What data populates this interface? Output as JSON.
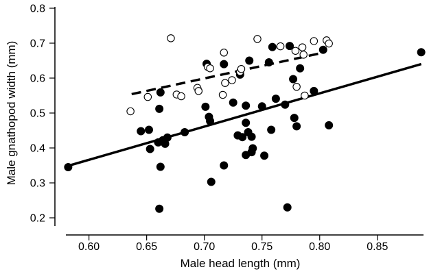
{
  "chart_data": {
    "type": "scatter",
    "title": "",
    "xlabel": "Male head length (mm)",
    "ylabel": "Male gnathopod width (mm)",
    "xlim": [
      0.58,
      0.89
    ],
    "ylim": [
      0.2,
      0.8
    ],
    "x_ticks": [
      0.6,
      0.65,
      0.7,
      0.75,
      0.8,
      0.85
    ],
    "x_tick_labels": [
      "0.60",
      "0.65",
      "0.70",
      "0.75",
      "0.80",
      "0.85"
    ],
    "y_ticks": [
      0.2,
      0.3,
      0.4,
      0.5,
      0.6,
      0.7,
      0.8
    ],
    "y_tick_labels": [
      "0.2",
      "0.3",
      "0.4",
      "0.5",
      "0.6",
      "0.7",
      "0.8"
    ],
    "grid": false,
    "legend": "none",
    "series": [
      {
        "marker": "filled-circle",
        "color": "#000000",
        "points": [
          [
            0.582,
            0.345
          ],
          [
            0.645,
            0.448
          ],
          [
            0.652,
            0.452
          ],
          [
            0.653,
            0.397
          ],
          [
            0.66,
            0.416
          ],
          [
            0.661,
            0.512
          ],
          [
            0.662,
            0.346
          ],
          [
            0.661,
            0.226
          ],
          [
            0.662,
            0.559
          ],
          [
            0.664,
            0.422
          ],
          [
            0.666,
            0.412
          ],
          [
            0.668,
            0.43
          ],
          [
            0.683,
            0.445
          ],
          [
            0.701,
            0.518
          ],
          [
            0.702,
            0.641
          ],
          [
            0.704,
            0.489
          ],
          [
            0.705,
            0.477
          ],
          [
            0.706,
            0.303
          ],
          [
            0.717,
            0.64
          ],
          [
            0.717,
            0.35
          ],
          [
            0.725,
            0.53
          ],
          [
            0.729,
            0.436
          ],
          [
            0.731,
            0.61
          ],
          [
            0.733,
            0.431
          ],
          [
            0.736,
            0.521
          ],
          [
            0.736,
            0.472
          ],
          [
            0.736,
            0.38
          ],
          [
            0.738,
            0.445
          ],
          [
            0.739,
            0.65
          ],
          [
            0.741,
            0.388
          ],
          [
            0.741,
            0.432
          ],
          [
            0.742,
            0.399
          ],
          [
            0.75,
            0.519
          ],
          [
            0.752,
            0.378
          ],
          [
            0.756,
            0.645
          ],
          [
            0.758,
            0.452
          ],
          [
            0.759,
            0.689
          ],
          [
            0.762,
            0.541
          ],
          [
            0.77,
            0.524
          ],
          [
            0.772,
            0.23
          ],
          [
            0.774,
            0.692
          ],
          [
            0.777,
            0.597
          ],
          [
            0.778,
            0.486
          ],
          [
            0.78,
            0.462
          ],
          [
            0.783,
            0.628
          ],
          [
            0.795,
            0.563
          ],
          [
            0.803,
            0.681
          ],
          [
            0.808,
            0.465
          ],
          [
            0.888,
            0.674
          ]
        ]
      },
      {
        "marker": "open-circle",
        "color": "#000000",
        "points": [
          [
            0.636,
            0.505
          ],
          [
            0.651,
            0.546
          ],
          [
            0.671,
            0.714
          ],
          [
            0.676,
            0.553
          ],
          [
            0.68,
            0.548
          ],
          [
            0.694,
            0.572
          ],
          [
            0.695,
            0.563
          ],
          [
            0.703,
            0.632
          ],
          [
            0.705,
            0.628
          ],
          [
            0.716,
            0.552
          ],
          [
            0.717,
            0.673
          ],
          [
            0.718,
            0.586
          ],
          [
            0.724,
            0.594
          ],
          [
            0.731,
            0.618
          ],
          [
            0.732,
            0.626
          ],
          [
            0.746,
            0.712
          ],
          [
            0.766,
            0.691
          ],
          [
            0.779,
            0.678
          ],
          [
            0.78,
            0.575
          ],
          [
            0.785,
            0.688
          ],
          [
            0.786,
            0.667
          ],
          [
            0.787,
            0.55
          ],
          [
            0.795,
            0.706
          ],
          [
            0.806,
            0.708
          ],
          [
            0.808,
            0.699
          ]
        ]
      }
    ],
    "fits": [
      {
        "style": "solid",
        "from": [
          0.582,
          0.349
        ],
        "to": [
          0.888,
          0.64
        ]
      },
      {
        "style": "dashed",
        "from": [
          0.637,
          0.554
        ],
        "to": [
          0.802,
          0.672
        ]
      }
    ]
  }
}
